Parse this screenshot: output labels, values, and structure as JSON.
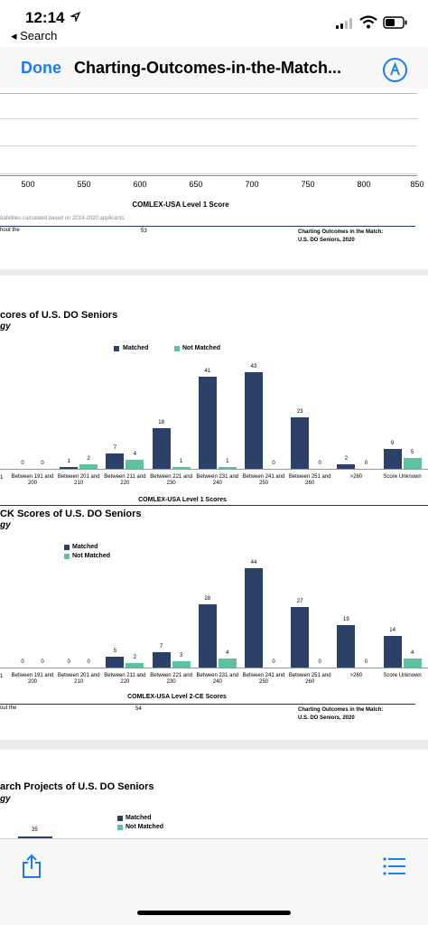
{
  "status_bar": {
    "time": "12:14",
    "back_label": "◂ Search"
  },
  "nav": {
    "done_label": "Done",
    "title": "Charting-Outcomes-in-the-Match..."
  },
  "page_top": {
    "x_ticks": [
      "500",
      "550",
      "600",
      "650",
      "700",
      "750",
      "800",
      "850"
    ],
    "axis_title": "COMLEX-USA Level 1 Score",
    "note": "babilities calculated based on 2018-2020 applicants.",
    "footer_left": "hout the",
    "page_number": "53",
    "footer_right_line1": "Charting Outcomes in the Match:",
    "footer_right_line2": "U.S. DO Seniors, 2020"
  },
  "chart1": {
    "title": "cores of U.S. DO Seniors",
    "subtitle": "gy",
    "legend": {
      "matched": "Matched",
      "not_matched": "Not Matched"
    },
    "axis_title": "COMLEX-USA Level 1 Scores",
    "left_partial_label": "1",
    "colors": {
      "matched": "#2c4167",
      "not_matched": "#5cc3a0"
    }
  },
  "chart2": {
    "title": "CK Scores of U.S. DO Seniors",
    "subtitle": "gy",
    "legend": {
      "matched": "Matched",
      "not_matched": "Not Matched"
    },
    "axis_title": "COMLEX-USA Level 2-CE Scores",
    "left_partial_label": "1",
    "footer_left": "out the",
    "page_number": "54",
    "footer_right_line1": "Charting Outcomes in the Match:",
    "footer_right_line2": "U.S. DO Seniors, 2020"
  },
  "chart3": {
    "title": "arch Projects of U.S. DO Seniors",
    "subtitle": "gy",
    "legend": {
      "matched": "Matched",
      "not_matched": "Not Matched"
    },
    "first_value": "35"
  },
  "chart_data": [
    {
      "type": "bar",
      "title": "",
      "xlabel": "COMLEX-USA Level 1 Scores",
      "ylabel": "",
      "categories": [
        "Between 191 and 200",
        "Between 201 and 210",
        "Between 211 and 220",
        "Between 221 and 230",
        "Between 231 and 240",
        "Between 241 and 250",
        "Between 251 and 260",
        ">260",
        "Score Unknown"
      ],
      "series": [
        {
          "name": "Matched",
          "values": [
            0,
            1,
            7,
            18,
            41,
            43,
            23,
            2,
            9
          ]
        },
        {
          "name": "Not Matched",
          "values": [
            0,
            2,
            4,
            1,
            1,
            0,
            0,
            0,
            5
          ]
        }
      ],
      "legend": "top-left"
    },
    {
      "type": "bar",
      "title": "",
      "xlabel": "COMLEX-USA Level 2-CE Scores",
      "ylabel": "",
      "categories": [
        "Between 191 and 200",
        "Between 201 and 210",
        "Between 211 and 220",
        "Between 221 and 230",
        "Between 231 and 240",
        "Between 241 and 250",
        "Between 251 and 260",
        ">260",
        "Score Unknown"
      ],
      "series": [
        {
          "name": "Matched",
          "values": [
            0,
            0,
            5,
            7,
            28,
            44,
            27,
            19,
            14
          ]
        },
        {
          "name": "Not Matched",
          "values": [
            0,
            0,
            2,
            3,
            4,
            0,
            0,
            0,
            4
          ]
        }
      ],
      "legend": "top-left"
    }
  ]
}
